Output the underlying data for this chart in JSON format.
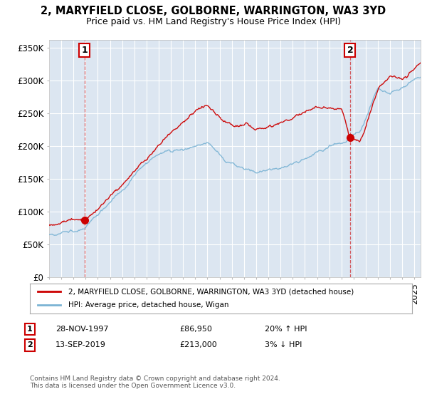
{
  "title1": "2, MARYFIELD CLOSE, GOLBORNE, WARRINGTON, WA3 3YD",
  "title2": "Price paid vs. HM Land Registry's House Price Index (HPI)",
  "ylabel_ticks": [
    "£0",
    "£50K",
    "£100K",
    "£150K",
    "£200K",
    "£250K",
    "£300K",
    "£350K"
  ],
  "ytick_vals": [
    0,
    50000,
    100000,
    150000,
    200000,
    250000,
    300000,
    350000
  ],
  "ylim": [
    0,
    362000
  ],
  "xlim_start": 1995.0,
  "xlim_end": 2025.5,
  "sale1_date": 1997.91,
  "sale1_price": 86950,
  "sale1_label": "1",
  "sale2_date": 2019.71,
  "sale2_price": 213000,
  "sale2_label": "2",
  "legend_red": "2, MARYFIELD CLOSE, GOLBORNE, WARRINGTON, WA3 3YD (detached house)",
  "legend_blue": "HPI: Average price, detached house, Wigan",
  "footer": "Contains HM Land Registry data © Crown copyright and database right 2024.\nThis data is licensed under the Open Government Licence v3.0.",
  "fig_bg": "#ffffff",
  "plot_bg": "#dce6f1",
  "grid_color": "#ffffff",
  "red_color": "#cc0000",
  "blue_color": "#7ab3d4",
  "sale1_info": [
    "28-NOV-1997",
    "£86,950",
    "20% ↑ HPI"
  ],
  "sale2_info": [
    "13-SEP-2019",
    "£213,000",
    "3% ↓ HPI"
  ]
}
